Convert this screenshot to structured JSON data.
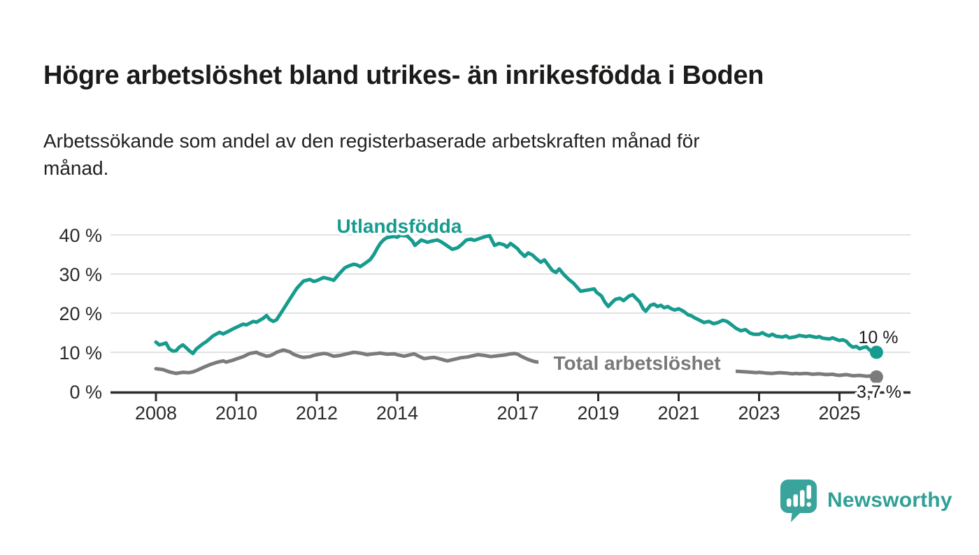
{
  "branding": {
    "logo_text": "Newsworthy",
    "logo_icon": "bar-chart-speech-bubble-icon"
  },
  "colors": {
    "accent_teal": "#179b8e",
    "series_gray": "#7b7b7b",
    "gray_label": "#787878",
    "axis": "#2d2d2d",
    "gridline": "#d9d9d9",
    "text": "#1c1c1c",
    "logo_teal": "#3aa49c"
  },
  "chart_data": {
    "type": "line",
    "title": "Högre arbetslöshet bland utrikes- än inrikesfödda i Boden",
    "subtitle": "Arbetssökande som andel av den registerbaserade arbetskraften månad för månad.",
    "xlabel": "",
    "ylabel": "",
    "x_axis": {
      "tick_labels": [
        2008,
        2010,
        2012,
        2014,
        2017,
        2019,
        2021,
        2023,
        2025
      ],
      "range_years": [
        2006.9,
        2026.8
      ],
      "grid": false
    },
    "y_axis": {
      "tick_labels": [
        0,
        10,
        20,
        30,
        40
      ],
      "unit": "%",
      "range": [
        0,
        42
      ],
      "grid": true
    },
    "legend_position": "inline-series-labels",
    "series": [
      {
        "name": "Utlandsfödda",
        "color": "#179b8e",
        "end_label": "10 %",
        "end_value": 10,
        "points": [
          [
            2008.0,
            12.6
          ],
          [
            2008.08,
            11.9
          ],
          [
            2008.17,
            12.1
          ],
          [
            2008.25,
            12.4
          ],
          [
            2008.33,
            10.9
          ],
          [
            2008.42,
            10.3
          ],
          [
            2008.5,
            10.4
          ],
          [
            2008.58,
            11.3
          ],
          [
            2008.67,
            11.9
          ],
          [
            2008.75,
            11.2
          ],
          [
            2008.83,
            10.4
          ],
          [
            2008.92,
            9.7
          ],
          [
            2009.0,
            10.8
          ],
          [
            2009.17,
            12.2
          ],
          [
            2009.25,
            12.7
          ],
          [
            2009.42,
            14.2
          ],
          [
            2009.58,
            15.1
          ],
          [
            2009.67,
            14.7
          ],
          [
            2009.83,
            15.5
          ],
          [
            2009.92,
            16.0
          ],
          [
            2010.0,
            16.4
          ],
          [
            2010.17,
            17.2
          ],
          [
            2010.25,
            17.0
          ],
          [
            2010.42,
            17.9
          ],
          [
            2010.5,
            17.7
          ],
          [
            2010.67,
            18.7
          ],
          [
            2010.75,
            19.4
          ],
          [
            2010.83,
            18.4
          ],
          [
            2010.92,
            17.9
          ],
          [
            2011.0,
            18.3
          ],
          [
            2011.17,
            21.0
          ],
          [
            2011.33,
            23.6
          ],
          [
            2011.5,
            26.3
          ],
          [
            2011.67,
            28.2
          ],
          [
            2011.83,
            28.6
          ],
          [
            2011.92,
            28.1
          ],
          [
            2012.0,
            28.3
          ],
          [
            2012.17,
            29.1
          ],
          [
            2012.33,
            28.7
          ],
          [
            2012.42,
            28.4
          ],
          [
            2012.58,
            30.3
          ],
          [
            2012.7,
            31.6
          ],
          [
            2012.83,
            32.2
          ],
          [
            2012.92,
            32.5
          ],
          [
            2013.0,
            32.3
          ],
          [
            2013.08,
            31.9
          ],
          [
            2013.17,
            32.5
          ],
          [
            2013.33,
            33.7
          ],
          [
            2013.42,
            35.0
          ],
          [
            2013.5,
            36.5
          ],
          [
            2013.58,
            37.8
          ],
          [
            2013.67,
            38.8
          ],
          [
            2013.75,
            39.3
          ],
          [
            2013.92,
            39.6
          ],
          [
            2014.0,
            39.4
          ],
          [
            2014.08,
            39.9
          ],
          [
            2014.25,
            39.7
          ],
          [
            2014.38,
            38.4
          ],
          [
            2014.44,
            37.3
          ],
          [
            2014.6,
            38.7
          ],
          [
            2014.75,
            38.1
          ],
          [
            2014.85,
            38.4
          ],
          [
            2015.0,
            38.7
          ],
          [
            2015.1,
            38.2
          ],
          [
            2015.2,
            37.5
          ],
          [
            2015.37,
            36.3
          ],
          [
            2015.5,
            36.7
          ],
          [
            2015.6,
            37.5
          ],
          [
            2015.72,
            38.7
          ],
          [
            2015.83,
            38.9
          ],
          [
            2015.92,
            38.6
          ],
          [
            2016.0,
            38.9
          ],
          [
            2016.17,
            39.5
          ],
          [
            2016.3,
            39.8
          ],
          [
            2016.42,
            37.3
          ],
          [
            2016.53,
            37.8
          ],
          [
            2016.65,
            37.5
          ],
          [
            2016.73,
            36.9
          ],
          [
            2016.82,
            37.8
          ],
          [
            2016.9,
            37.2
          ],
          [
            2017.0,
            36.4
          ],
          [
            2017.05,
            35.7
          ],
          [
            2017.17,
            34.5
          ],
          [
            2017.26,
            35.4
          ],
          [
            2017.37,
            34.8
          ],
          [
            2017.46,
            33.9
          ],
          [
            2017.57,
            33.0
          ],
          [
            2017.66,
            33.6
          ],
          [
            2017.77,
            32.1
          ],
          [
            2017.86,
            30.9
          ],
          [
            2017.95,
            30.4
          ],
          [
            2018.03,
            31.3
          ],
          [
            2018.15,
            29.8
          ],
          [
            2018.27,
            28.6
          ],
          [
            2018.38,
            27.7
          ],
          [
            2018.56,
            25.6
          ],
          [
            2018.73,
            25.9
          ],
          [
            2018.9,
            26.2
          ],
          [
            2018.96,
            25.3
          ],
          [
            2019.08,
            24.4
          ],
          [
            2019.16,
            22.9
          ],
          [
            2019.25,
            21.7
          ],
          [
            2019.33,
            22.6
          ],
          [
            2019.42,
            23.5
          ],
          [
            2019.54,
            23.8
          ],
          [
            2019.63,
            23.2
          ],
          [
            2019.77,
            24.4
          ],
          [
            2019.86,
            24.7
          ],
          [
            2019.94,
            23.8
          ],
          [
            2020.03,
            22.9
          ],
          [
            2020.12,
            21.1
          ],
          [
            2020.18,
            20.5
          ],
          [
            2020.3,
            22.0
          ],
          [
            2020.39,
            22.3
          ],
          [
            2020.47,
            21.7
          ],
          [
            2020.56,
            22.0
          ],
          [
            2020.64,
            21.4
          ],
          [
            2020.73,
            21.7
          ],
          [
            2020.82,
            21.1
          ],
          [
            2020.9,
            20.8
          ],
          [
            2021.0,
            21.1
          ],
          [
            2021.12,
            20.5
          ],
          [
            2021.23,
            19.6
          ],
          [
            2021.32,
            19.3
          ],
          [
            2021.4,
            18.8
          ],
          [
            2021.52,
            18.2
          ],
          [
            2021.63,
            17.6
          ],
          [
            2021.75,
            17.9
          ],
          [
            2021.87,
            17.3
          ],
          [
            2021.98,
            17.6
          ],
          [
            2022.1,
            18.2
          ],
          [
            2022.2,
            17.9
          ],
          [
            2022.32,
            17.0
          ],
          [
            2022.43,
            16.1
          ],
          [
            2022.55,
            15.5
          ],
          [
            2022.66,
            15.8
          ],
          [
            2022.78,
            14.9
          ],
          [
            2022.87,
            14.6
          ],
          [
            2023.0,
            14.6
          ],
          [
            2023.08,
            15.0
          ],
          [
            2023.17,
            14.5
          ],
          [
            2023.25,
            14.2
          ],
          [
            2023.33,
            14.6
          ],
          [
            2023.42,
            14.1
          ],
          [
            2023.58,
            13.9
          ],
          [
            2023.67,
            14.2
          ],
          [
            2023.75,
            13.7
          ],
          [
            2023.92,
            14.0
          ],
          [
            2024.0,
            14.3
          ],
          [
            2024.17,
            14.0
          ],
          [
            2024.25,
            14.2
          ],
          [
            2024.42,
            13.8
          ],
          [
            2024.5,
            14.0
          ],
          [
            2024.58,
            13.6
          ],
          [
            2024.75,
            13.4
          ],
          [
            2024.83,
            13.7
          ],
          [
            2024.92,
            13.3
          ],
          [
            2025.0,
            13.0
          ],
          [
            2025.08,
            13.2
          ],
          [
            2025.17,
            12.8
          ],
          [
            2025.25,
            11.9
          ],
          [
            2025.33,
            11.3
          ],
          [
            2025.42,
            11.5
          ],
          [
            2025.5,
            10.9
          ],
          [
            2025.58,
            11.2
          ],
          [
            2025.67,
            11.4
          ],
          [
            2025.75,
            10.6
          ],
          [
            2025.83,
            10.1
          ],
          [
            2025.92,
            10.0
          ]
        ]
      },
      {
        "name": "Total arbetslöshet",
        "color": "#7b7b7b",
        "end_label": "3,7 %",
        "end_value": 3.7,
        "points": [
          [
            2008.0,
            5.8
          ],
          [
            2008.17,
            5.6
          ],
          [
            2008.33,
            5.0
          ],
          [
            2008.5,
            4.6
          ],
          [
            2008.67,
            4.9
          ],
          [
            2008.83,
            4.8
          ],
          [
            2008.92,
            5.0
          ],
          [
            2009.0,
            5.3
          ],
          [
            2009.17,
            6.1
          ],
          [
            2009.33,
            6.8
          ],
          [
            2009.5,
            7.4
          ],
          [
            2009.67,
            7.8
          ],
          [
            2009.75,
            7.5
          ],
          [
            2009.92,
            8.0
          ],
          [
            2010.0,
            8.3
          ],
          [
            2010.17,
            8.9
          ],
          [
            2010.33,
            9.7
          ],
          [
            2010.5,
            10.0
          ],
          [
            2010.58,
            9.6
          ],
          [
            2010.75,
            9.0
          ],
          [
            2010.83,
            9.1
          ],
          [
            2010.92,
            9.5
          ],
          [
            2011.0,
            10.0
          ],
          [
            2011.17,
            10.6
          ],
          [
            2011.33,
            10.1
          ],
          [
            2011.42,
            9.5
          ],
          [
            2011.58,
            8.9
          ],
          [
            2011.67,
            8.7
          ],
          [
            2011.83,
            8.9
          ],
          [
            2011.92,
            9.2
          ],
          [
            2012.0,
            9.4
          ],
          [
            2012.17,
            9.7
          ],
          [
            2012.25,
            9.6
          ],
          [
            2012.42,
            9.0
          ],
          [
            2012.58,
            9.2
          ],
          [
            2012.75,
            9.6
          ],
          [
            2012.92,
            10.0
          ],
          [
            2013.08,
            9.8
          ],
          [
            2013.25,
            9.4
          ],
          [
            2013.42,
            9.6
          ],
          [
            2013.58,
            9.8
          ],
          [
            2013.75,
            9.5
          ],
          [
            2013.92,
            9.6
          ],
          [
            2014.0,
            9.4
          ],
          [
            2014.17,
            9.0
          ],
          [
            2014.33,
            9.4
          ],
          [
            2014.42,
            9.6
          ],
          [
            2014.58,
            8.8
          ],
          [
            2014.67,
            8.4
          ],
          [
            2014.83,
            8.6
          ],
          [
            2014.92,
            8.7
          ],
          [
            2015.0,
            8.5
          ],
          [
            2015.17,
            8.0
          ],
          [
            2015.25,
            7.8
          ],
          [
            2015.42,
            8.2
          ],
          [
            2015.58,
            8.6
          ],
          [
            2015.75,
            8.8
          ],
          [
            2015.92,
            9.2
          ],
          [
            2016.0,
            9.4
          ],
          [
            2016.17,
            9.2
          ],
          [
            2016.33,
            8.9
          ],
          [
            2016.5,
            9.1
          ],
          [
            2016.67,
            9.3
          ],
          [
            2016.83,
            9.6
          ],
          [
            2016.92,
            9.7
          ],
          [
            2017.0,
            9.5
          ],
          [
            2017.08,
            9.0
          ],
          [
            2017.25,
            8.2
          ],
          [
            2017.42,
            7.6
          ],
          [
            2017.58,
            7.4
          ],
          [
            2017.75,
            7.2
          ],
          [
            2017.92,
            7.0
          ],
          [
            2018.25,
            6.9
          ],
          [
            2018.58,
            6.7
          ],
          [
            2018.92,
            6.6
          ],
          [
            2019.25,
            6.5
          ],
          [
            2019.58,
            6.4
          ],
          [
            2019.92,
            6.6
          ],
          [
            2020.25,
            6.9
          ],
          [
            2020.58,
            6.7
          ],
          [
            2020.92,
            6.4
          ],
          [
            2021.25,
            6.1
          ],
          [
            2021.58,
            5.8
          ],
          [
            2021.92,
            5.6
          ],
          [
            2022.0,
            5.5
          ],
          [
            2022.17,
            5.3
          ],
          [
            2022.33,
            5.2
          ],
          [
            2022.5,
            5.1
          ],
          [
            2022.67,
            5.0
          ],
          [
            2022.83,
            4.9
          ],
          [
            2022.92,
            4.8
          ],
          [
            2023.0,
            4.9
          ],
          [
            2023.17,
            4.7
          ],
          [
            2023.33,
            4.6
          ],
          [
            2023.5,
            4.8
          ],
          [
            2023.67,
            4.7
          ],
          [
            2023.83,
            4.5
          ],
          [
            2023.92,
            4.6
          ],
          [
            2024.0,
            4.5
          ],
          [
            2024.17,
            4.6
          ],
          [
            2024.33,
            4.4
          ],
          [
            2024.5,
            4.5
          ],
          [
            2024.67,
            4.3
          ],
          [
            2024.83,
            4.4
          ],
          [
            2024.92,
            4.2
          ],
          [
            2025.0,
            4.1
          ],
          [
            2025.17,
            4.3
          ],
          [
            2025.33,
            4.0
          ],
          [
            2025.5,
            4.1
          ],
          [
            2025.67,
            3.9
          ],
          [
            2025.83,
            4.0
          ],
          [
            2025.92,
            3.7
          ]
        ]
      }
    ]
  }
}
